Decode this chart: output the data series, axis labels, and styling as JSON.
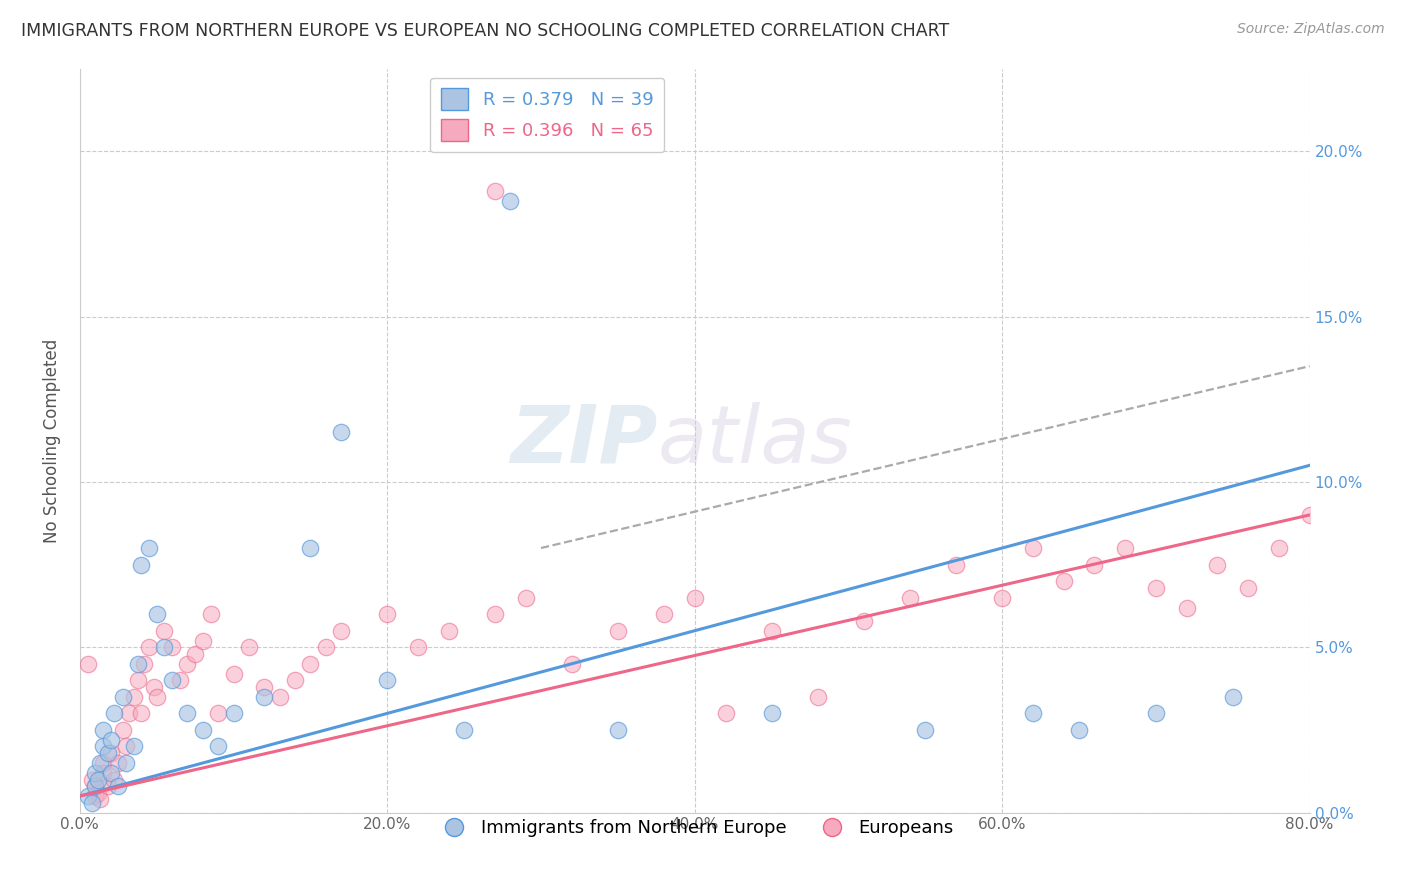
{
  "title": "IMMIGRANTS FROM NORTHERN EUROPE VS EUROPEAN NO SCHOOLING COMPLETED CORRELATION CHART",
  "source": "Source: ZipAtlas.com",
  "xlabel": "",
  "ylabel": "No Schooling Completed",
  "legend1_label": "Immigrants from Northern Europe",
  "legend2_label": "Europeans",
  "R1": 0.379,
  "N1": 39,
  "R2": 0.396,
  "N2": 65,
  "xlim": [
    0,
    0.8
  ],
  "ylim": [
    0,
    0.225
  ],
  "xticks": [
    0.0,
    0.2,
    0.4,
    0.6,
    0.8
  ],
  "yticks": [
    0.0,
    0.05,
    0.1,
    0.15,
    0.2
  ],
  "color_blue": "#aac4e2",
  "color_pink": "#f5aabf",
  "color_line_blue": "#5599dd",
  "color_line_pink": "#ee6688",
  "color_line_gray": "#aaaaaa",
  "blue_scatter_x": [
    0.005,
    0.008,
    0.01,
    0.01,
    0.012,
    0.013,
    0.015,
    0.015,
    0.018,
    0.02,
    0.02,
    0.022,
    0.025,
    0.028,
    0.03,
    0.035,
    0.038,
    0.04,
    0.045,
    0.05,
    0.055,
    0.06,
    0.07,
    0.08,
    0.09,
    0.1,
    0.12,
    0.15,
    0.17,
    0.2,
    0.25,
    0.28,
    0.35,
    0.45,
    0.55,
    0.62,
    0.65,
    0.7,
    0.75
  ],
  "blue_scatter_y": [
    0.005,
    0.003,
    0.008,
    0.012,
    0.01,
    0.015,
    0.02,
    0.025,
    0.018,
    0.012,
    0.022,
    0.03,
    0.008,
    0.035,
    0.015,
    0.02,
    0.045,
    0.075,
    0.08,
    0.06,
    0.05,
    0.04,
    0.03,
    0.025,
    0.02,
    0.03,
    0.035,
    0.08,
    0.115,
    0.04,
    0.025,
    0.185,
    0.025,
    0.03,
    0.025,
    0.03,
    0.025,
    0.03,
    0.035
  ],
  "pink_scatter_x": [
    0.005,
    0.008,
    0.01,
    0.01,
    0.012,
    0.013,
    0.015,
    0.015,
    0.018,
    0.02,
    0.022,
    0.025,
    0.028,
    0.03,
    0.032,
    0.035,
    0.038,
    0.04,
    0.042,
    0.045,
    0.048,
    0.05,
    0.055,
    0.06,
    0.065,
    0.07,
    0.075,
    0.08,
    0.085,
    0.09,
    0.1,
    0.11,
    0.12,
    0.13,
    0.14,
    0.15,
    0.16,
    0.17,
    0.2,
    0.22,
    0.24,
    0.27,
    0.29,
    0.32,
    0.35,
    0.38,
    0.4,
    0.42,
    0.45,
    0.48,
    0.51,
    0.54,
    0.57,
    0.6,
    0.62,
    0.64,
    0.66,
    0.68,
    0.7,
    0.72,
    0.74,
    0.76,
    0.78,
    0.8,
    0.27
  ],
  "pink_scatter_y": [
    0.045,
    0.01,
    0.005,
    0.008,
    0.006,
    0.004,
    0.015,
    0.012,
    0.008,
    0.018,
    0.01,
    0.015,
    0.025,
    0.02,
    0.03,
    0.035,
    0.04,
    0.03,
    0.045,
    0.05,
    0.038,
    0.035,
    0.055,
    0.05,
    0.04,
    0.045,
    0.048,
    0.052,
    0.06,
    0.03,
    0.042,
    0.05,
    0.038,
    0.035,
    0.04,
    0.045,
    0.05,
    0.055,
    0.06,
    0.05,
    0.055,
    0.06,
    0.065,
    0.045,
    0.055,
    0.06,
    0.065,
    0.03,
    0.055,
    0.035,
    0.058,
    0.065,
    0.075,
    0.065,
    0.08,
    0.07,
    0.075,
    0.08,
    0.068,
    0.062,
    0.075,
    0.068,
    0.08,
    0.09,
    0.188
  ],
  "blue_trend_x": [
    0.0,
    0.8
  ],
  "blue_trend_y": [
    0.005,
    0.105
  ],
  "pink_trend_x": [
    0.0,
    0.8
  ],
  "pink_trend_y": [
    0.005,
    0.09
  ],
  "gray_trend_x": [
    0.3,
    0.8
  ],
  "gray_trend_y": [
    0.08,
    0.135
  ],
  "watermark_zip": "ZIP",
  "watermark_atlas": "atlas",
  "background_color": "#ffffff",
  "grid_color": "#cccccc"
}
